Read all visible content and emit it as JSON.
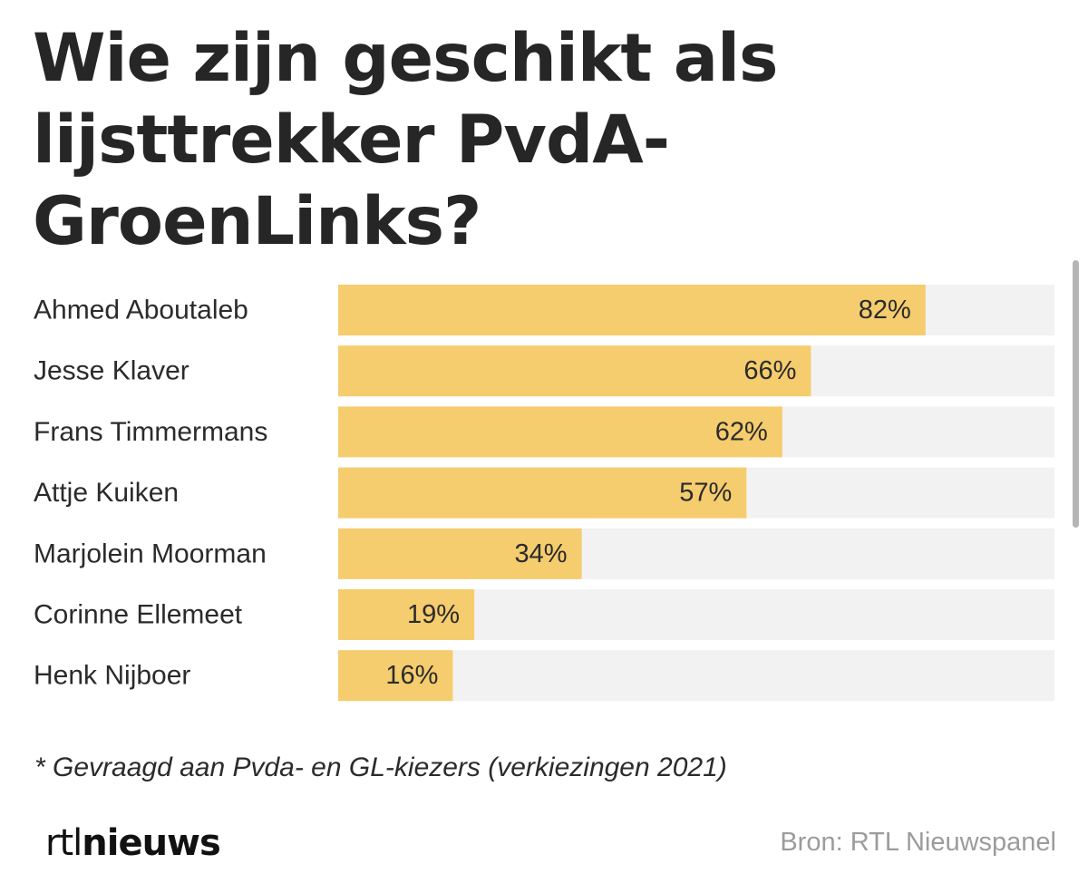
{
  "title": "Wie zijn geschikt als lijsttrekker PvdA-GroenLinks?",
  "footnote": "* Gevraagd aan Pvda- en GL-kiezers (verkiezingen 2021)",
  "logo": {
    "part1": "rtl",
    "part2": "nieuws"
  },
  "source": "Bron: RTL Nieuwspanel",
  "colors": {
    "bar": "#f5cc6e",
    "track": "#f2f2f2",
    "text": "#2b2b2b",
    "source": "#9c9c9c"
  },
  "chart_data": {
    "type": "bar",
    "orientation": "horizontal",
    "title": "Wie zijn geschikt als lijsttrekker PvdA-GroenLinks?",
    "categories": [
      "Ahmed Aboutaleb",
      "Jesse Klaver",
      "Frans Timmermans",
      "Attje Kuiken",
      "Marjolein Moorman",
      "Corinne Ellemeet",
      "Henk Nijboer"
    ],
    "values": [
      82,
      66,
      62,
      57,
      34,
      19,
      16
    ],
    "value_labels": [
      "82%",
      "66%",
      "62%",
      "57%",
      "34%",
      "19%",
      "16%"
    ],
    "xlim": [
      0,
      100
    ],
    "unit": "%",
    "grid": false,
    "legend": "none"
  }
}
